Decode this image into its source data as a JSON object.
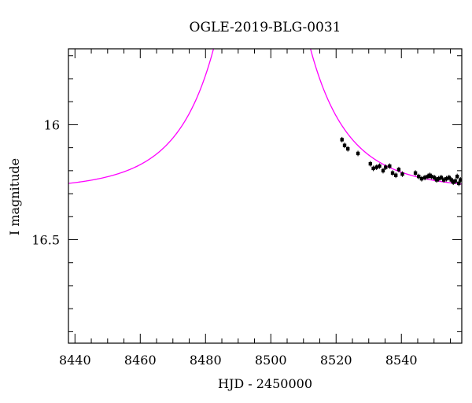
{
  "chart_data": {
    "type": "scatter",
    "title": "OGLE-2019-BLG-0031",
    "xlabel": "HJD - 2450000",
    "ylabel": "I magnitude",
    "xlim": [
      8438,
      8558.5
    ],
    "ylim": [
      16.95,
      15.67
    ],
    "y_inverted": true,
    "x_ticks": [
      8440,
      8460,
      8480,
      8500,
      8520,
      8540
    ],
    "x_tick_labels": [
      "8440",
      "8460",
      "8480",
      "8500",
      "8520",
      "8540"
    ],
    "y_ticks": [
      16.0,
      16.5
    ],
    "y_tick_labels": [
      "16",
      "16.5"
    ],
    "grid": false,
    "model_color": "#ff00ff",
    "point_color": "#000000",
    "model": {
      "name": "",
      "peak_time": 8497.3,
      "baseline_mag": 16.285,
      "u0": 0.11,
      "tE": 23.0
    },
    "points": [
      {
        "x": 8521.8,
        "y": 16.065
      },
      {
        "x": 8522.6,
        "y": 16.09
      },
      {
        "x": 8523.6,
        "y": 16.105
      },
      {
        "x": 8526.7,
        "y": 16.125
      },
      {
        "x": 8530.5,
        "y": 16.17
      },
      {
        "x": 8531.4,
        "y": 16.19
      },
      {
        "x": 8532.4,
        "y": 16.185
      },
      {
        "x": 8533.3,
        "y": 16.18
      },
      {
        "x": 8534.4,
        "y": 16.2
      },
      {
        "x": 8535.2,
        "y": 16.185
      },
      {
        "x": 8536.4,
        "y": 16.18
      },
      {
        "x": 8537.3,
        "y": 16.21
      },
      {
        "x": 8538.3,
        "y": 16.22
      },
      {
        "x": 8539.2,
        "y": 16.195
      },
      {
        "x": 8540.3,
        "y": 16.215
      },
      {
        "x": 8544.3,
        "y": 16.21
      },
      {
        "x": 8545.3,
        "y": 16.225
      },
      {
        "x": 8546.2,
        "y": 16.235
      },
      {
        "x": 8547.2,
        "y": 16.23
      },
      {
        "x": 8548.1,
        "y": 16.225
      },
      {
        "x": 8548.7,
        "y": 16.22
      },
      {
        "x": 8549.2,
        "y": 16.225
      },
      {
        "x": 8550.1,
        "y": 16.23
      },
      {
        "x": 8550.8,
        "y": 16.24
      },
      {
        "x": 8551.4,
        "y": 16.235
      },
      {
        "x": 8552.2,
        "y": 16.23
      },
      {
        "x": 8553.0,
        "y": 16.24
      },
      {
        "x": 8553.8,
        "y": 16.235
      },
      {
        "x": 8554.6,
        "y": 16.23
      },
      {
        "x": 8555.3,
        "y": 16.24
      },
      {
        "x": 8555.9,
        "y": 16.25
      },
      {
        "x": 8556.5,
        "y": 16.245
      },
      {
        "x": 8557.1,
        "y": 16.225
      },
      {
        "x": 8557.6,
        "y": 16.255
      },
      {
        "x": 8558.1,
        "y": 16.24
      }
    ]
  }
}
